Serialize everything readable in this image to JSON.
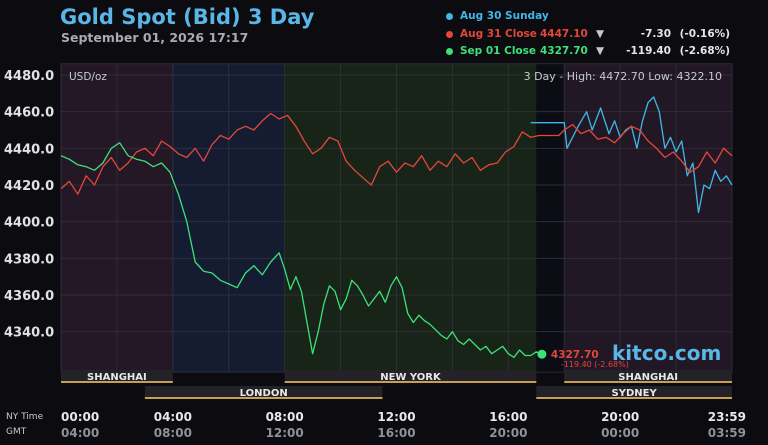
{
  "header": {
    "title": "Gold Spot (Bid) 3 Day",
    "timestamp": "September 01, 2026 17:17"
  },
  "legend": [
    {
      "name": "Aug 30 Sunday",
      "price": "",
      "arrow": "",
      "change": "",
      "pct": "",
      "color": "#3fb8e8"
    },
    {
      "name": "Aug 31 Close",
      "price": "4447.10",
      "arrow": "▼",
      "change": "-7.30",
      "pct": "(-0.16%)",
      "color": "#e3473b"
    },
    {
      "name": "Sep 01 Close",
      "price": "4327.70",
      "arrow": "▼",
      "change": "-119.40",
      "pct": "(-2.68%)",
      "color": "#3ee07a"
    }
  ],
  "brand": "kitco.com",
  "chart_data": {
    "type": "line",
    "unit_label": "USD/oz",
    "range_label": "3 Day - High: 4472.70  Low: 4322.10",
    "ylim": [
      4318,
      4486
    ],
    "y_ticks": [
      "4480.0",
      "4460.0",
      "4440.0",
      "4420.0",
      "4400.0",
      "4380.0",
      "4360.0",
      "4340.0"
    ],
    "y_tick_values": [
      4480,
      4460,
      4440,
      4420,
      4400,
      4380,
      4360,
      4340
    ],
    "xlim": [
      0,
      24
    ],
    "x_ticks_ny": [
      "00:00",
      "04:00",
      "08:00",
      "12:00",
      "16:00",
      "20:00",
      "23:59"
    ],
    "x_ticks_gmt": [
      "04:00",
      "08:00",
      "12:00",
      "16:00",
      "20:00",
      "00:00",
      "03:59"
    ],
    "x_tick_hours": [
      0,
      4,
      8,
      12,
      16,
      20,
      24
    ],
    "axis_row_labels": {
      "ny": "NY Time",
      "gmt": "GMT"
    },
    "grid": true,
    "legend_position": "top-right",
    "sessions": [
      {
        "name": "SHANGHAI",
        "start": 0,
        "end": 4
      },
      {
        "name": "LONDON",
        "start": 3,
        "end": 11.5
      },
      {
        "name": "NEW YORK",
        "start": 8,
        "end": 17
      },
      {
        "name": "SHANGHAI",
        "start": 18,
        "end": 24
      },
      {
        "name": "SYDNEY",
        "start": 17,
        "end": 24
      }
    ],
    "last_value": {
      "x": 17.2,
      "y": 4327.7,
      "price_label": "4327.70",
      "change_label": "-119.40 (-2.68%)"
    },
    "series": [
      {
        "name": "Aug 30 Sunday",
        "color": "#3fb8e8",
        "x": [
          16.8,
          17.0,
          17.05,
          18.0,
          18.1,
          18.5,
          18.8,
          19.0,
          19.3,
          19.6,
          19.8,
          20.0,
          20.2,
          20.4,
          20.6,
          20.8,
          21.0,
          21.2,
          21.4,
          21.6,
          21.8,
          22.0,
          22.2,
          22.4,
          22.6,
          22.8,
          23.0,
          23.2,
          23.4,
          23.6,
          23.8,
          24.0
        ],
        "values": [
          4454,
          4454,
          4454,
          4454,
          4440,
          4452,
          4460,
          4450,
          4462,
          4448,
          4455,
          4446,
          4450,
          4452,
          4440,
          4455,
          4465,
          4468,
          4460,
          4440,
          4446,
          4438,
          4444,
          4425,
          4432,
          4405,
          4420,
          4418,
          4428,
          4422,
          4425,
          4420
        ]
      },
      {
        "name": "Aug 31 Close",
        "color": "#e3473b",
        "x": [
          0,
          0.3,
          0.6,
          0.9,
          1.2,
          1.5,
          1.8,
          2.1,
          2.4,
          2.7,
          3.0,
          3.3,
          3.6,
          3.9,
          4.2,
          4.5,
          4.8,
          5.1,
          5.4,
          5.7,
          6.0,
          6.3,
          6.6,
          6.9,
          7.2,
          7.5,
          7.8,
          8.1,
          8.4,
          8.7,
          9.0,
          9.3,
          9.6,
          9.9,
          10.2,
          10.5,
          10.8,
          11.1,
          11.4,
          11.7,
          12.0,
          12.3,
          12.6,
          12.9,
          13.2,
          13.5,
          13.8,
          14.1,
          14.4,
          14.7,
          15.0,
          15.3,
          15.6,
          15.9,
          16.2,
          16.5,
          16.8,
          17.1,
          17.4,
          17.8,
          18.0,
          18.3,
          18.6,
          18.9,
          19.2,
          19.5,
          19.8,
          20.1,
          20.4,
          20.7,
          21.0,
          21.3,
          21.6,
          21.9,
          22.2,
          22.5,
          22.8,
          23.1,
          23.4,
          23.7,
          24.0
        ],
        "values": [
          4418,
          4422,
          4415,
          4425,
          4420,
          4430,
          4435,
          4428,
          4432,
          4438,
          4440,
          4436,
          4444,
          4441,
          4437,
          4435,
          4440,
          4433,
          4442,
          4447,
          4445,
          4450,
          4452,
          4450,
          4455,
          4459,
          4456,
          4458,
          4452,
          4444,
          4437,
          4440,
          4446,
          4444,
          4433,
          4428,
          4424,
          4420,
          4430,
          4433,
          4427,
          4432,
          4430,
          4436,
          4428,
          4433,
          4430,
          4437,
          4432,
          4435,
          4428,
          4431,
          4432,
          4438,
          4441,
          4449,
          4446,
          4447,
          4447,
          4447,
          4450,
          4453,
          4448,
          4450,
          4445,
          4446,
          4443,
          4448,
          4452,
          4450,
          4444,
          4440,
          4435,
          4438,
          4433,
          4427,
          4430,
          4438,
          4432,
          4440,
          4436
        ]
      },
      {
        "name": "Sep 01 Close",
        "color": "#3ee07a",
        "x": [
          0,
          0.3,
          0.6,
          0.9,
          1.2,
          1.5,
          1.8,
          2.1,
          2.4,
          2.7,
          3.0,
          3.3,
          3.6,
          3.9,
          4.2,
          4.5,
          4.8,
          5.1,
          5.4,
          5.7,
          6.0,
          6.3,
          6.6,
          6.9,
          7.2,
          7.5,
          7.8,
          8.0,
          8.2,
          8.4,
          8.6,
          8.8,
          9.0,
          9.2,
          9.4,
          9.6,
          9.8,
          10.0,
          10.2,
          10.4,
          10.6,
          10.8,
          11.0,
          11.2,
          11.4,
          11.6,
          11.8,
          12.0,
          12.2,
          12.4,
          12.6,
          12.8,
          13.0,
          13.2,
          13.4,
          13.6,
          13.8,
          14.0,
          14.2,
          14.4,
          14.6,
          14.8,
          15.0,
          15.2,
          15.4,
          15.6,
          15.8,
          16.0,
          16.2,
          16.4,
          16.6,
          16.8,
          17.0,
          17.2
        ],
        "values": [
          4436,
          4434,
          4431,
          4430,
          4428,
          4432,
          4440,
          4443,
          4436,
          4434,
          4433,
          4430,
          4432,
          4427,
          4415,
          4400,
          4378,
          4373,
          4372,
          4368,
          4366,
          4364,
          4372,
          4376,
          4371,
          4378,
          4383,
          4374,
          4363,
          4370,
          4362,
          4345,
          4328,
          4340,
          4355,
          4365,
          4362,
          4352,
          4358,
          4368,
          4365,
          4360,
          4354,
          4358,
          4362,
          4356,
          4365,
          4370,
          4364,
          4350,
          4345,
          4349,
          4346,
          4344,
          4341,
          4338,
          4336,
          4340,
          4335,
          4333,
          4336,
          4333,
          4330,
          4332,
          4328,
          4330,
          4332,
          4328,
          4326,
          4330,
          4327,
          4327,
          4329,
          4327.7
        ]
      }
    ]
  }
}
